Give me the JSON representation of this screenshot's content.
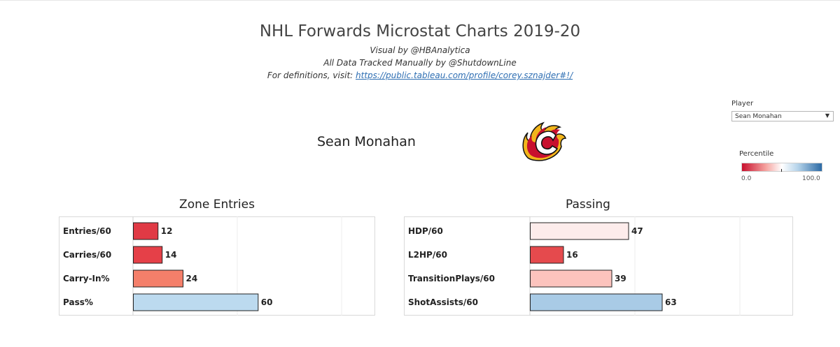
{
  "header": {
    "title": "NHL Forwards Microstat Charts 2019-20",
    "visual_by": "Visual by @HBAnalytica",
    "tracked_by": "All Data Tracked Manually by @ShutdownLine",
    "definitions_prefix": "For definitions, visit: ",
    "definitions_link": "https://public.tableau.com/profile/corey.sznajder#!/"
  },
  "player": {
    "name": "Sean Monahan",
    "team_logo_icon": "calgary-flames-logo"
  },
  "filter": {
    "label": "Player",
    "selected": "Sean Monahan"
  },
  "legend": {
    "title": "Percentile",
    "min_label": "0.0",
    "max_label": "100.0",
    "colors": [
      "#c8102e",
      "#ffffff",
      "#2c6aa5"
    ]
  },
  "chart_data": [
    {
      "type": "bar",
      "orientation": "horizontal",
      "title": "Zone Entries",
      "categories": [
        "Entries/60",
        "Carries/60",
        "Carry-In%",
        "Pass%"
      ],
      "values": [
        12,
        14,
        24,
        60
      ],
      "xlim": [
        0,
        100
      ],
      "grid": true,
      "colors": [
        "#e03a45",
        "#e54048",
        "#f47f6a",
        "#bcdaef"
      ]
    },
    {
      "type": "bar",
      "orientation": "horizontal",
      "title": "Passing",
      "categories": [
        "HDP/60",
        "L2HP/60",
        "TransitionPlays/60",
        "ShotAssists/60"
      ],
      "values": [
        47,
        16,
        39,
        63
      ],
      "xlim": [
        0,
        100
      ],
      "grid": true,
      "colors": [
        "#fdeceb",
        "#e54a4d",
        "#fcc3bd",
        "#a9cbe6"
      ]
    }
  ]
}
